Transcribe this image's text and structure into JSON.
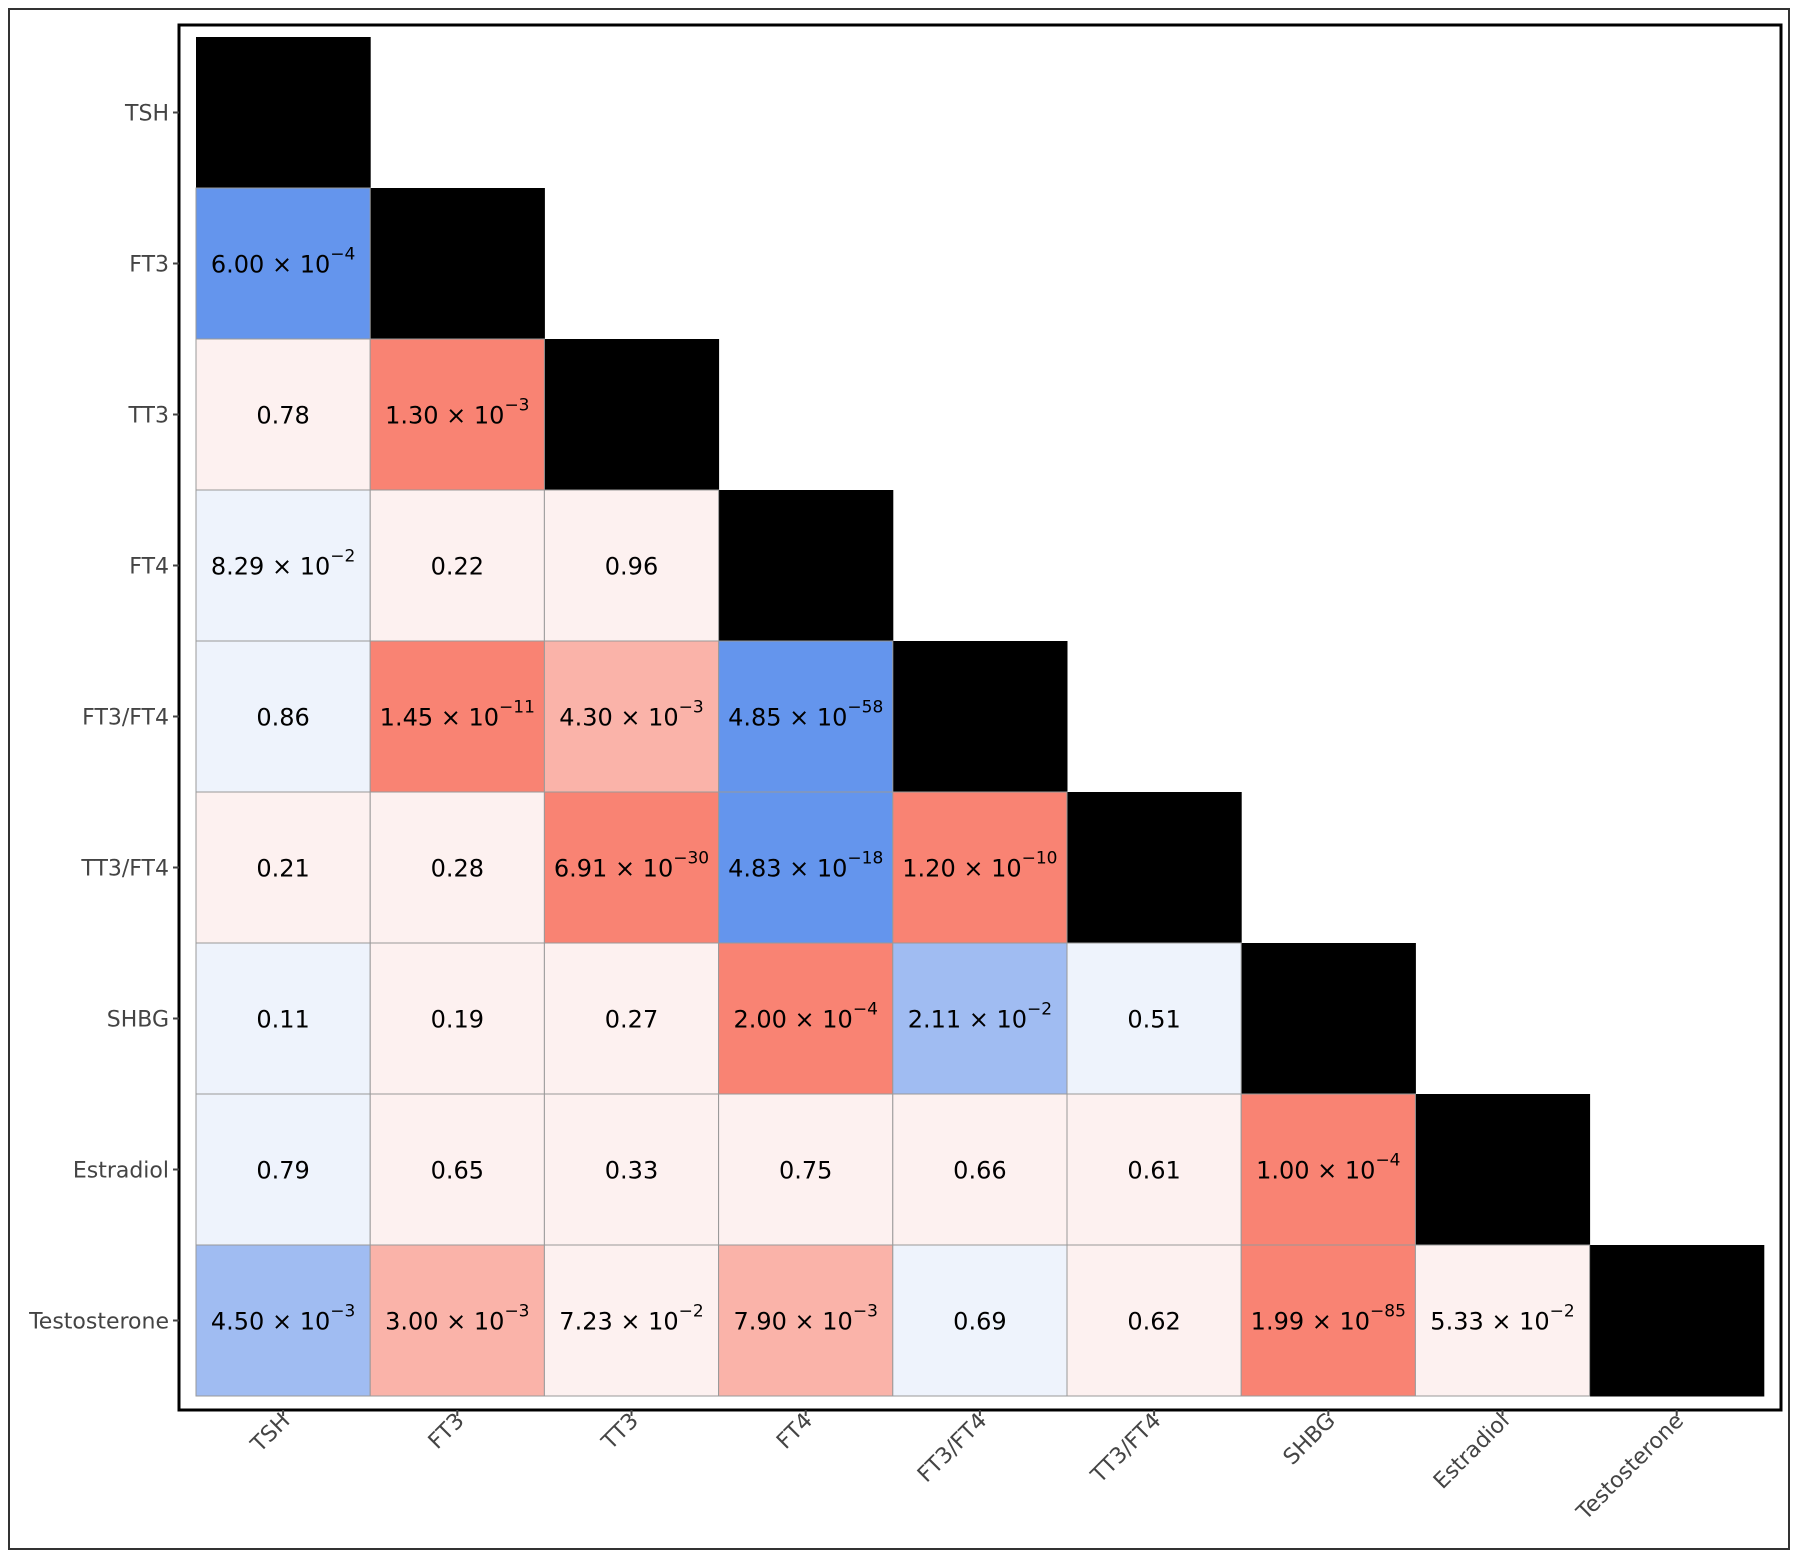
{
  "chart_data": {
    "type": "heatmap",
    "title": "",
    "xlabel": "",
    "ylabel": "",
    "labels": [
      "TSH",
      "FT3",
      "TT3",
      "FT4",
      "FT3/FT4",
      "TT3/FT4",
      "SHBG",
      "Estradiol",
      "Testosterone"
    ],
    "diagonal_color": "#000000",
    "colors": {
      "strong_negative": "#6495ED",
      "moderate_negative": "#A0BCF2",
      "weak_negative": "#EEF3FC",
      "weak_positive": "#FDF1F0",
      "moderate_positive": "#FAB3A9",
      "strong_positive": "#F98373"
    },
    "cells": [
      {
        "row": "FT3",
        "col": "TSH",
        "mantissa": "6.00",
        "exponent": "−4",
        "shade": "strong_negative"
      },
      {
        "row": "TT3",
        "col": "TSH",
        "text": "0.78",
        "shade": "weak_positive"
      },
      {
        "row": "TT3",
        "col": "FT3",
        "mantissa": "1.30",
        "exponent": "−3",
        "shade": "strong_positive"
      },
      {
        "row": "FT4",
        "col": "TSH",
        "mantissa": "8.29",
        "exponent": "−2",
        "shade": "weak_negative"
      },
      {
        "row": "FT4",
        "col": "FT3",
        "text": "0.22",
        "shade": "weak_positive"
      },
      {
        "row": "FT4",
        "col": "TT3",
        "text": "0.96",
        "shade": "weak_positive"
      },
      {
        "row": "FT3/FT4",
        "col": "TSH",
        "text": "0.86",
        "shade": "weak_negative"
      },
      {
        "row": "FT3/FT4",
        "col": "FT3",
        "mantissa": "1.45",
        "exponent": "−11",
        "shade": "strong_positive"
      },
      {
        "row": "FT3/FT4",
        "col": "TT3",
        "mantissa": "4.30",
        "exponent": "−3",
        "shade": "moderate_positive"
      },
      {
        "row": "FT3/FT4",
        "col": "FT4",
        "mantissa": "4.85",
        "exponent": "−58",
        "shade": "strong_negative"
      },
      {
        "row": "TT3/FT4",
        "col": "TSH",
        "text": "0.21",
        "shade": "weak_positive"
      },
      {
        "row": "TT3/FT4",
        "col": "FT3",
        "text": "0.28",
        "shade": "weak_positive"
      },
      {
        "row": "TT3/FT4",
        "col": "TT3",
        "mantissa": "6.91",
        "exponent": "−30",
        "shade": "strong_positive"
      },
      {
        "row": "TT3/FT4",
        "col": "FT4",
        "mantissa": "4.83",
        "exponent": "−18",
        "shade": "strong_negative"
      },
      {
        "row": "TT3/FT4",
        "col": "FT3/FT4",
        "mantissa": "1.20",
        "exponent": "−10",
        "shade": "strong_positive"
      },
      {
        "row": "SHBG",
        "col": "TSH",
        "text": "0.11",
        "shade": "weak_negative"
      },
      {
        "row": "SHBG",
        "col": "FT3",
        "text": "0.19",
        "shade": "weak_positive"
      },
      {
        "row": "SHBG",
        "col": "TT3",
        "text": "0.27",
        "shade": "weak_positive"
      },
      {
        "row": "SHBG",
        "col": "FT4",
        "mantissa": "2.00",
        "exponent": "−4",
        "shade": "strong_positive"
      },
      {
        "row": "SHBG",
        "col": "FT3/FT4",
        "mantissa": "2.11",
        "exponent": "−2",
        "shade": "moderate_negative"
      },
      {
        "row": "SHBG",
        "col": "TT3/FT4",
        "text": "0.51",
        "shade": "weak_negative"
      },
      {
        "row": "Estradiol",
        "col": "TSH",
        "text": "0.79",
        "shade": "weak_negative"
      },
      {
        "row": "Estradiol",
        "col": "FT3",
        "text": "0.65",
        "shade": "weak_positive"
      },
      {
        "row": "Estradiol",
        "col": "TT3",
        "text": "0.33",
        "shade": "weak_positive"
      },
      {
        "row": "Estradiol",
        "col": "FT4",
        "text": "0.75",
        "shade": "weak_positive"
      },
      {
        "row": "Estradiol",
        "col": "FT3/FT4",
        "text": "0.66",
        "shade": "weak_positive"
      },
      {
        "row": "Estradiol",
        "col": "TT3/FT4",
        "text": "0.61",
        "shade": "weak_positive"
      },
      {
        "row": "Estradiol",
        "col": "SHBG",
        "mantissa": "1.00",
        "exponent": "−4",
        "shade": "strong_positive"
      },
      {
        "row": "Testosterone",
        "col": "TSH",
        "mantissa": "4.50",
        "exponent": "−3",
        "shade": "moderate_negative"
      },
      {
        "row": "Testosterone",
        "col": "FT3",
        "mantissa": "3.00",
        "exponent": "−3",
        "shade": "moderate_positive"
      },
      {
        "row": "Testosterone",
        "col": "TT3",
        "mantissa": "7.23",
        "exponent": "−2",
        "shade": "weak_positive"
      },
      {
        "row": "Testosterone",
        "col": "FT4",
        "mantissa": "7.90",
        "exponent": "−3",
        "shade": "moderate_positive"
      },
      {
        "row": "Testosterone",
        "col": "FT3/FT4",
        "text": "0.69",
        "shade": "weak_negative"
      },
      {
        "row": "Testosterone",
        "col": "TT3/FT4",
        "text": "0.62",
        "shade": "weak_positive"
      },
      {
        "row": "Testosterone",
        "col": "SHBG",
        "mantissa": "1.99",
        "exponent": "−85",
        "shade": "strong_positive"
      },
      {
        "row": "Testosterone",
        "col": "Estradiol",
        "mantissa": "5.33",
        "exponent": "−2",
        "shade": "weak_positive"
      }
    ]
  }
}
